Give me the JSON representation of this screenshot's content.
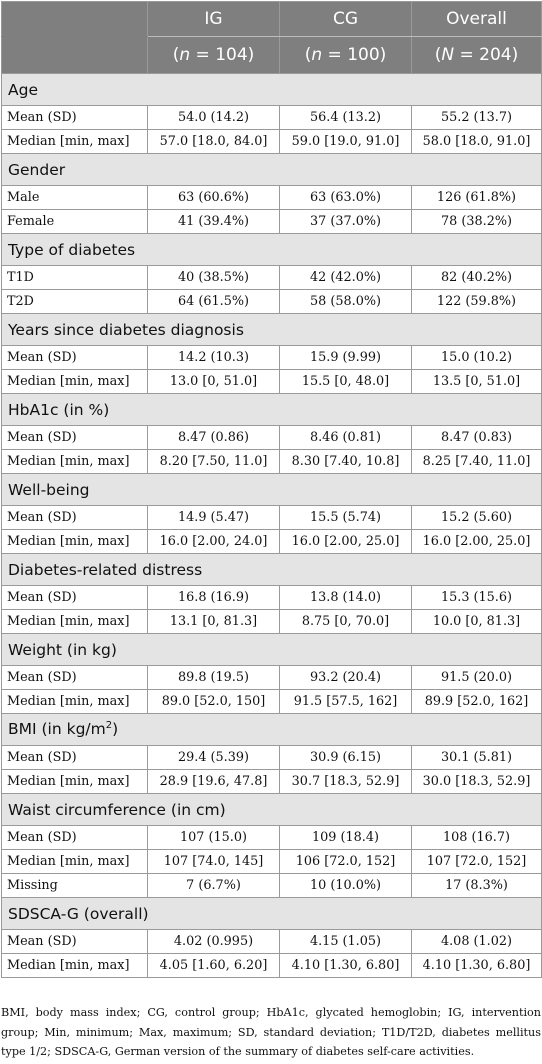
{
  "header": {
    "columns": [
      "IG",
      "CG",
      "Overall"
    ],
    "counts": [
      "(n = 104)",
      "(n = 100)",
      "(N = 204)"
    ]
  },
  "sections": [
    {
      "title": "Age",
      "rows": [
        {
          "label": "Mean (SD)",
          "values": [
            "54.0 (14.2)",
            "56.4 (13.2)",
            "55.2 (13.7)"
          ]
        },
        {
          "label": "Median [min, max]",
          "values": [
            "57.0 [18.0, 84.0]",
            "59.0 [19.0, 91.0]",
            "58.0 [18.0, 91.0]"
          ]
        }
      ]
    },
    {
      "title": "Gender",
      "rows": [
        {
          "label": "Male",
          "values": [
            "63 (60.6%)",
            "63 (63.0%)",
            "126 (61.8%)"
          ]
        },
        {
          "label": "Female",
          "values": [
            "41 (39.4%)",
            "37 (37.0%)",
            "78 (38.2%)"
          ]
        }
      ]
    },
    {
      "title": "Type of diabetes",
      "rows": [
        {
          "label": "T1D",
          "values": [
            "40 (38.5%)",
            "42 (42.0%)",
            "82 (40.2%)"
          ]
        },
        {
          "label": "T2D",
          "values": [
            "64 (61.5%)",
            "58 (58.0%)",
            "122 (59.8%)"
          ]
        }
      ]
    },
    {
      "title": "Years since diabetes diagnosis",
      "rows": [
        {
          "label": "Mean (SD)",
          "values": [
            "14.2 (10.3)",
            "15.9 (9.99)",
            "15.0 (10.2)"
          ]
        },
        {
          "label": "Median [min, max]",
          "values": [
            "13.0 [0, 51.0]",
            "15.5 [0, 48.0]",
            "13.5 [0, 51.0]"
          ]
        }
      ]
    },
    {
      "title": "HbA1c (in %)",
      "rows": [
        {
          "label": "Mean (SD)",
          "values": [
            "8.47 (0.86)",
            "8.46 (0.81)",
            "8.47 (0.83)"
          ]
        },
        {
          "label": "Median [min, max]",
          "values": [
            "8.20 [7.50, 11.0]",
            "8.30 [7.40, 10.8]",
            "8.25 [7.40, 11.0]"
          ]
        }
      ]
    },
    {
      "title": "Well-being",
      "rows": [
        {
          "label": "Mean (SD)",
          "values": [
            "14.9 (5.47)",
            "15.5 (5.74)",
            "15.2 (5.60)"
          ]
        },
        {
          "label": "Median [min, max]",
          "values": [
            "16.0 [2.00, 24.0]",
            "16.0 [2.00, 25.0]",
            "16.0 [2.00, 25.0]"
          ]
        }
      ]
    },
    {
      "title": "Diabetes-related distress",
      "rows": [
        {
          "label": "Mean (SD)",
          "values": [
            "16.8 (16.9)",
            "13.8 (14.0)",
            "15.3 (15.6)"
          ]
        },
        {
          "label": "Median [min, max]",
          "values": [
            "13.1 [0, 81.3]",
            "8.75 [0, 70.0]",
            "10.0 [0, 81.3]"
          ]
        }
      ]
    },
    {
      "title": "Weight (in kg)",
      "rows": [
        {
          "label": "Mean (SD)",
          "values": [
            "89.8 (19.5)",
            "93.2 (20.4)",
            "91.5 (20.0)"
          ]
        },
        {
          "label": "Median [min, max]",
          "values": [
            "89.0 [52.0, 150]",
            "91.5 [57.5, 162]",
            "89.9 [52.0, 162]"
          ]
        }
      ]
    },
    {
      "title": "BMI (in kg/m",
      "title_sup": "2",
      "title_after": ")",
      "rows": [
        {
          "label": "Mean (SD)",
          "values": [
            "29.4 (5.39)",
            "30.9 (6.15)",
            "30.1 (5.81)"
          ]
        },
        {
          "label": "Median [min, max]",
          "values": [
            "28.9 [19.6, 47.8]",
            "30.7 [18.3, 52.9]",
            "30.0 [18.3, 52.9]"
          ]
        }
      ]
    },
    {
      "title": "Waist circumference (in cm)",
      "rows": [
        {
          "label": "Mean (SD)",
          "values": [
            "107 (15.0)",
            "109 (18.4)",
            "108 (16.7)"
          ]
        },
        {
          "label": "Median [min, max]",
          "values": [
            "107 [74.0, 145]",
            "106 [72.0, 152]",
            "107 [72.0, 152]"
          ]
        },
        {
          "label": "Missing",
          "values": [
            "7 (6.7%)",
            "10 (10.0%)",
            "17 (8.3%)"
          ]
        }
      ]
    },
    {
      "title": "SDSCA-G (overall)",
      "rows": [
        {
          "label": "Mean (SD)",
          "values": [
            "4.02 (0.995)",
            "4.15 (1.05)",
            "4.08 (1.02)"
          ]
        },
        {
          "label": "Median [min, max]",
          "values": [
            "4.05 [1.60, 6.20]",
            "4.10 [1.30, 6.80]",
            "4.10 [1.30, 6.80]"
          ]
        }
      ]
    }
  ],
  "footnote": "BMI, body mass index; CG, control group; HbA1c, glycated hemoglobin; IG, intervention group; Min, minimum; Max, maximum; SD, standard deviation; T1D/T2D, diabetes mellitus type 1/2; SDSCA-G, German version of the summary of diabetes self-care activities."
}
